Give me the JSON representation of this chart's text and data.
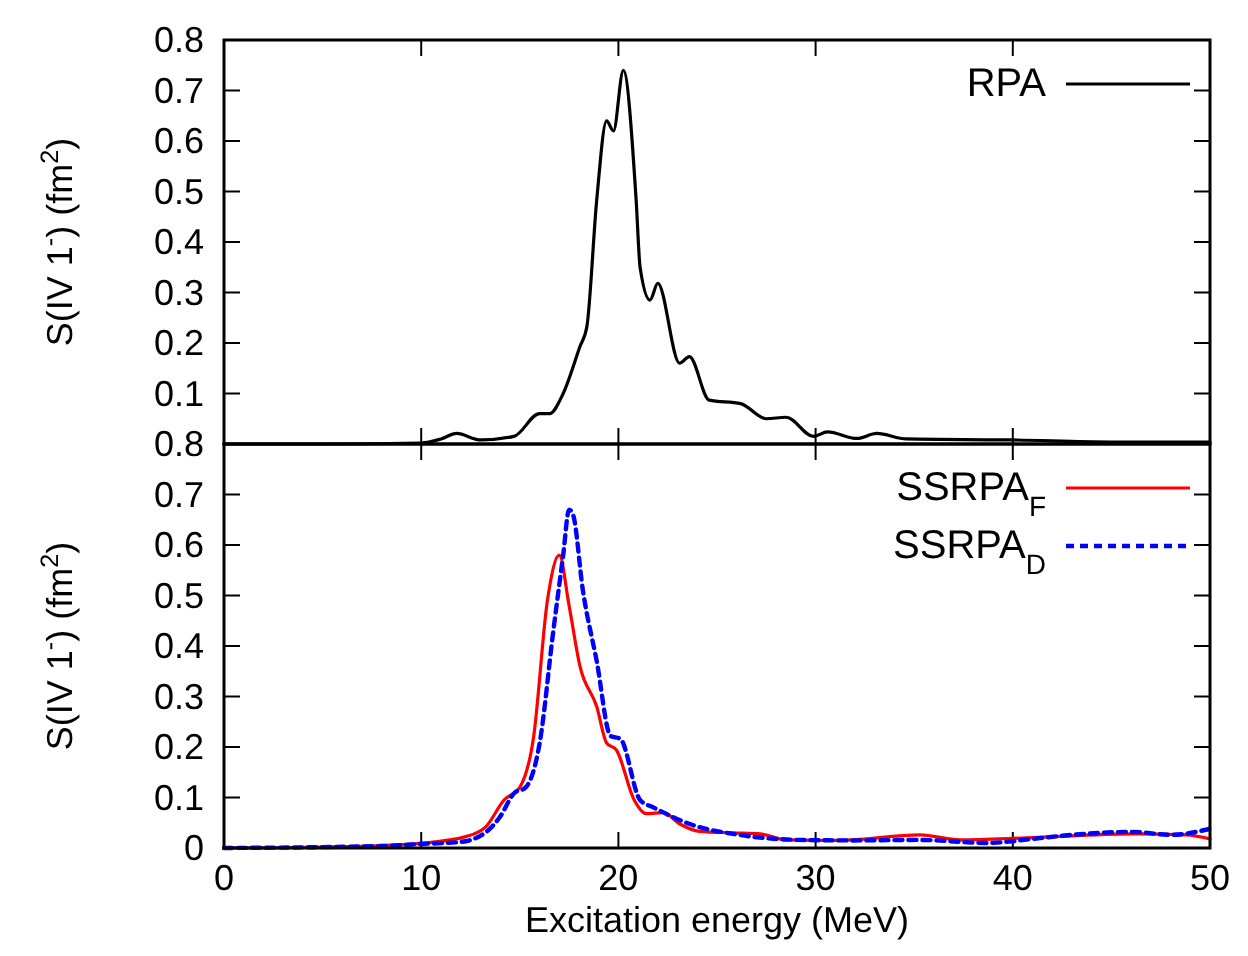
{
  "chart_data": [
    {
      "type": "line",
      "ylabel": "S(IV 1$^{-}$) (fm$^{2}$)",
      "xlim": [
        0,
        50
      ],
      "xticks": [
        0,
        10,
        20,
        30,
        40,
        50
      ],
      "ylim": [
        0,
        0.8
      ],
      "yticks": [
        0.1,
        0.2,
        0.3,
        0.4,
        0.5,
        0.6,
        0.7,
        0.8
      ],
      "tick_labels": "y",
      "legend": "top right",
      "grid": false,
      "series": [
        {
          "name": "RPA",
          "color": "#000000",
          "line_style": "solid",
          "x": [
            0,
            5,
            10,
            11,
            11.8,
            13,
            14.7,
            16,
            16.5,
            17.2,
            18.05,
            18.4,
            18.9,
            19.4,
            19.75,
            20.25,
            20.9,
            21.1,
            21.6,
            22,
            23.1,
            23.6,
            24.6,
            26.2,
            27.5,
            28.5,
            29.9,
            30.6,
            32.1,
            33.1,
            34.6,
            40,
            45,
            50
          ],
          "values": [
            0,
            0,
            0.002,
            0.01,
            0.021,
            0.008,
            0.015,
            0.06,
            0.06,
            0.1,
            0.193,
            0.232,
            0.483,
            0.64,
            0.62,
            0.74,
            0.483,
            0.35,
            0.285,
            0.318,
            0.16,
            0.173,
            0.087,
            0.08,
            0.05,
            0.053,
            0.015,
            0.024,
            0.011,
            0.021,
            0.01,
            0.008,
            0.004,
            0.004
          ]
        }
      ]
    },
    {
      "type": "line",
      "xlabel": "Excitation energy (MeV)",
      "ylabel": "S(IV 1$^{-}$) (fm$^{2}$)",
      "xlim": [
        0,
        50
      ],
      "xticks": [
        0,
        10,
        20,
        30,
        40,
        50
      ],
      "ylim": [
        0,
        0.8
      ],
      "yticks": [
        0,
        0.1,
        0.2,
        0.3,
        0.4,
        0.5,
        0.6,
        0.7,
        0.8
      ],
      "legend": "top right",
      "grid": false,
      "series": [
        {
          "name": "SSRPA$_{F}$",
          "color": "#ff0000",
          "line_style": "solid",
          "x": [
            0,
            5,
            8,
            9.94,
            12.3,
            13.3,
            14.2,
            15,
            15.7,
            16.4,
            17,
            17.5,
            18.05,
            18.9,
            19.4,
            19.9,
            20.8,
            21.4,
            22.3,
            23.1,
            24.1,
            25.8,
            27.2,
            28.5,
            31.2,
            35.3,
            37.3,
            40.7,
            46.1,
            48.8,
            50
          ],
          "values": [
            0,
            0.002,
            0.005,
            0.009,
            0.023,
            0.043,
            0.095,
            0.12,
            0.22,
            0.49,
            0.58,
            0.48,
            0.36,
            0.28,
            0.208,
            0.194,
            0.095,
            0.068,
            0.07,
            0.048,
            0.033,
            0.03,
            0.028,
            0.016,
            0.015,
            0.026,
            0.016,
            0.02,
            0.028,
            0.026,
            0.018
          ]
        },
        {
          "name": "SSRPA$_{D}$",
          "color": "#0000ff",
          "line_style": "dashed",
          "x": [
            0,
            8,
            10,
            12,
            13.3,
            14,
            14.7,
            15.3,
            16,
            16.7,
            17.2,
            17.5,
            17.7,
            18.2,
            18.9,
            19.6,
            20.1,
            21.1,
            21.8,
            23.8,
            25.8,
            29.2,
            31.9,
            35.3,
            38.7,
            41,
            43,
            46.1,
            48,
            50
          ],
          "values": [
            0,
            0.004,
            0.008,
            0.012,
            0.032,
            0.062,
            0.108,
            0.12,
            0.206,
            0.43,
            0.58,
            0.67,
            0.66,
            0.51,
            0.37,
            0.222,
            0.216,
            0.095,
            0.08,
            0.045,
            0.028,
            0.016,
            0.015,
            0.016,
            0.01,
            0.018,
            0.026,
            0.032,
            0.026,
            0.038
          ]
        }
      ]
    }
  ]
}
